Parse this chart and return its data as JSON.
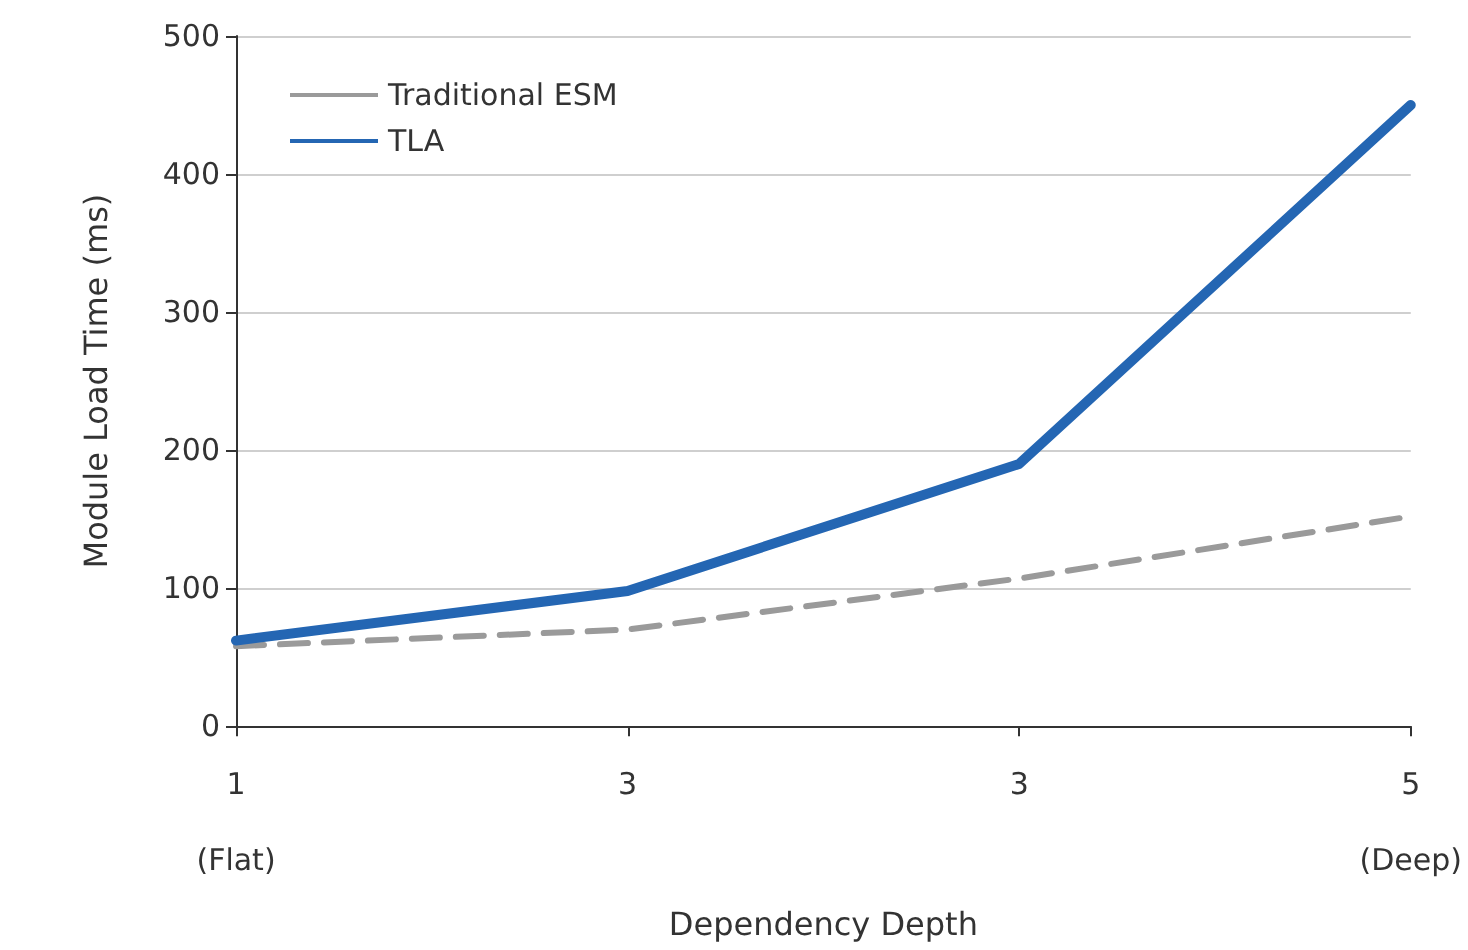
{
  "chart_data": {
    "type": "line",
    "xlabel": "Dependency Depth",
    "ylabel": "Module Load Time (ms)",
    "categories": [
      "1\n(Flat)",
      "3",
      "3",
      "5\n(Deep)"
    ],
    "series": [
      {
        "name": "Traditional ESM",
        "color": "#9a9a9a",
        "values": [
          58,
          70,
          107,
          152
        ],
        "line_style": "dashed"
      },
      {
        "name": "TLA",
        "color": "#2466b3",
        "values": [
          62,
          98,
          190,
          450
        ],
        "line_style": "solid"
      }
    ],
    "ylim": [
      0,
      500
    ],
    "yticks": [
      0,
      100,
      200,
      300,
      400,
      500
    ],
    "grid": "y",
    "legend": "top left",
    "marker": "none"
  }
}
